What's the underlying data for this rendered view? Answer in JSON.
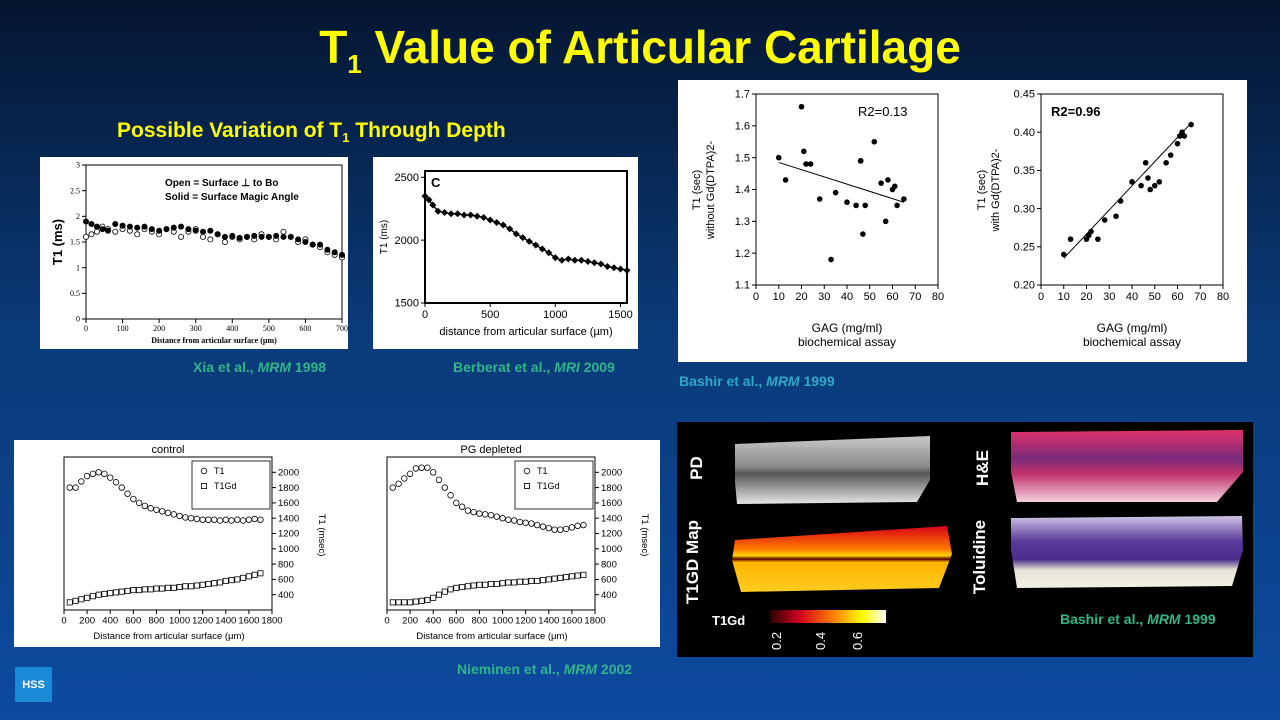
{
  "title": {
    "main_pre": "T",
    "main_sub": "1",
    "main_post": " Value of Articular Cartilage"
  },
  "subtitle": {
    "pre": "Possible Variation of T",
    "sub": "1",
    "post": " Through Depth"
  },
  "citations": {
    "xia": {
      "authors": "Xia et al., ",
      "journal": "MRM",
      "year": " 1998"
    },
    "berberat": {
      "authors": "Berberat et al., ",
      "journal": "MRI",
      "year": " 2009"
    },
    "bashir1": {
      "authors": "Bashir et al., ",
      "journal": "MRM",
      "year": " 1999"
    },
    "nieminen": {
      "authors": "Nieminen et al., ",
      "journal": "MRM",
      "year": " 2002"
    },
    "bashir2": {
      "authors": "Bashir et al., ",
      "journal": "MRM",
      "year": " 1999"
    }
  },
  "logo": "HSS",
  "histology": {
    "pd": "PD",
    "t1gd_map": "T1GD Map",
    "he": "H&E",
    "toluidine": "Toluidine",
    "colorbar_label": "T1Gd",
    "colorbar_ticks": [
      "0.2",
      "0.4",
      "0.6"
    ]
  },
  "chart_data": [
    {
      "id": "xia",
      "type": "scatter",
      "xlabel": "Distance from articular surface (µm)",
      "ylabel": "T1 (ms)",
      "xlim": [
        0,
        700
      ],
      "ylim": [
        0,
        3
      ],
      "xticks": [
        "0",
        "100",
        "200",
        "300",
        "400",
        "500",
        "600",
        "700"
      ],
      "yticks": [
        "0",
        "0.5",
        "1",
        "1.5",
        "2",
        "2.5",
        "3"
      ],
      "legend": [
        "Open = Surface ⊥ to Bo",
        "Solid = Surface Magic Angle"
      ],
      "series": [
        {
          "name": "Open",
          "style": "open",
          "x": [
            0,
            15,
            30,
            45,
            60,
            80,
            100,
            120,
            140,
            160,
            180,
            200,
            220,
            240,
            260,
            280,
            300,
            320,
            340,
            360,
            380,
            400,
            420,
            440,
            460,
            480,
            500,
            520,
            540,
            560,
            580,
            600,
            620,
            640,
            660,
            680,
            700
          ],
          "y": [
            1.6,
            1.65,
            1.7,
            1.8,
            1.75,
            1.7,
            1.75,
            1.72,
            1.65,
            1.75,
            1.7,
            1.65,
            1.75,
            1.7,
            1.6,
            1.7,
            1.75,
            1.6,
            1.55,
            1.65,
            1.5,
            1.6,
            1.55,
            1.6,
            1.55,
            1.65,
            1.6,
            1.55,
            1.7,
            1.6,
            1.5,
            1.55,
            1.45,
            1.4,
            1.3,
            1.25,
            1.2
          ]
        },
        {
          "name": "Solid",
          "style": "filled",
          "x": [
            0,
            15,
            30,
            45,
            60,
            80,
            100,
            120,
            140,
            160,
            180,
            200,
            220,
            240,
            260,
            280,
            300,
            320,
            340,
            360,
            380,
            400,
            420,
            440,
            460,
            480,
            500,
            520,
            540,
            560,
            580,
            600,
            620,
            640,
            660,
            680,
            700
          ],
          "y": [
            1.9,
            1.85,
            1.8,
            1.75,
            1.72,
            1.85,
            1.82,
            1.8,
            1.78,
            1.8,
            1.75,
            1.72,
            1.75,
            1.78,
            1.8,
            1.75,
            1.72,
            1.7,
            1.72,
            1.65,
            1.6,
            1.62,
            1.58,
            1.6,
            1.62,
            1.6,
            1.6,
            1.62,
            1.6,
            1.6,
            1.55,
            1.5,
            1.45,
            1.45,
            1.35,
            1.3,
            1.25
          ]
        }
      ]
    },
    {
      "id": "berberat",
      "type": "line",
      "panel_label": "C",
      "xlabel": "distance from articular surface (µm)",
      "ylabel": "T1 (ms)",
      "xlim": [
        0,
        1550
      ],
      "ylim": [
        1500,
        2550
      ],
      "xticks": [
        "0",
        "500",
        "1000",
        "1500"
      ],
      "yticks": [
        "1500",
        "2000",
        "2500"
      ],
      "series": [
        {
          "x": [
            0,
            30,
            60,
            100,
            150,
            200,
            250,
            300,
            350,
            400,
            450,
            500,
            550,
            600,
            650,
            700,
            750,
            800,
            850,
            900,
            950,
            1000,
            1050,
            1100,
            1150,
            1200,
            1250,
            1300,
            1350,
            1400,
            1450,
            1500,
            1550
          ],
          "y": [
            2350,
            2320,
            2280,
            2230,
            2220,
            2210,
            2210,
            2200,
            2200,
            2190,
            2180,
            2160,
            2140,
            2120,
            2090,
            2050,
            2020,
            1990,
            1960,
            1930,
            1900,
            1860,
            1840,
            1850,
            1840,
            1840,
            1830,
            1820,
            1810,
            1790,
            1780,
            1770,
            1760
          ]
        }
      ]
    },
    {
      "id": "bashir_without",
      "type": "scatter",
      "annotation": "R2=0.13",
      "xlabel": "GAG  (mg/ml)",
      "xlabel2": "biochemical assay",
      "ylabel": "T1 (sec)",
      "ylabel2": "without Gd(DTPA)2-",
      "xlim": [
        0,
        80
      ],
      "ylim": [
        1.1,
        1.7
      ],
      "xticks": [
        "0",
        "10",
        "20",
        "30",
        "40",
        "50",
        "60",
        "70",
        "80"
      ],
      "yticks": [
        "1.1",
        "1.2",
        "1.3",
        "1.4",
        "1.5",
        "1.6",
        "1.7"
      ],
      "series": [
        {
          "x": [
            10,
            13,
            20,
            21,
            22,
            24,
            28,
            33,
            35,
            40,
            44,
            46,
            46,
            47,
            48,
            52,
            55,
            57,
            58,
            60,
            61,
            62,
            65
          ],
          "y": [
            1.5,
            1.43,
            1.66,
            1.52,
            1.48,
            1.48,
            1.37,
            1.18,
            1.39,
            1.36,
            1.35,
            1.49,
            1.49,
            1.26,
            1.35,
            1.55,
            1.42,
            1.3,
            1.43,
            1.4,
            1.41,
            1.35,
            1.37
          ]
        }
      ],
      "trendline": {
        "x": [
          10,
          65
        ],
        "y": [
          1.485,
          1.36
        ]
      }
    },
    {
      "id": "bashir_with",
      "type": "scatter",
      "annotation": "R2=0.96",
      "xlabel": "GAG  (mg/ml)",
      "xlabel2": "biochemical assay",
      "ylabel": "T1 (sec)",
      "ylabel2": "with Gd(DTPA)2-",
      "xlim": [
        0,
        80
      ],
      "ylim": [
        0.2,
        0.45
      ],
      "xticks": [
        "0",
        "10",
        "20",
        "30",
        "40",
        "50",
        "60",
        "70",
        "80"
      ],
      "yticks": [
        "0.20",
        "0.25",
        "0.30",
        "0.35",
        "0.40",
        "0.45"
      ],
      "series": [
        {
          "x": [
            10,
            13,
            20,
            21,
            22,
            25,
            28,
            33,
            35,
            40,
            44,
            46,
            47,
            48,
            50,
            52,
            55,
            57,
            60,
            61,
            62,
            63,
            66
          ],
          "y": [
            0.24,
            0.26,
            0.26,
            0.265,
            0.27,
            0.26,
            0.285,
            0.29,
            0.31,
            0.335,
            0.33,
            0.36,
            0.34,
            0.325,
            0.33,
            0.335,
            0.36,
            0.37,
            0.385,
            0.395,
            0.4,
            0.395,
            0.41
          ]
        }
      ],
      "trendline": {
        "x": [
          10,
          66
        ],
        "y": [
          0.235,
          0.412
        ]
      }
    },
    {
      "id": "nieminen_control",
      "type": "scatter",
      "title": "control",
      "xlabel": "Distance from articular surface (μm)",
      "ylabel": "T1 (msec)",
      "legend": [
        "T1",
        "T1Gd"
      ],
      "xlim": [
        0,
        1800
      ],
      "ylim": [
        200,
        2200
      ],
      "xticks": [
        "0",
        "200",
        "400",
        "600",
        "800",
        "1000",
        "1200",
        "1400",
        "1600",
        "1800"
      ],
      "yticks": [
        "400",
        "600",
        "800",
        "1000",
        "1200",
        "1400",
        "1600",
        "1800",
        "2000"
      ],
      "series": [
        {
          "name": "T1",
          "style": "circle",
          "x": [
            50,
            100,
            150,
            200,
            250,
            300,
            350,
            400,
            450,
            500,
            550,
            600,
            650,
            700,
            750,
            800,
            850,
            900,
            950,
            1000,
            1050,
            1100,
            1150,
            1200,
            1250,
            1300,
            1350,
            1400,
            1450,
            1500,
            1550,
            1600,
            1650,
            1700
          ],
          "y": [
            1800,
            1800,
            1880,
            1950,
            1980,
            2000,
            1980,
            1930,
            1870,
            1800,
            1720,
            1650,
            1600,
            1560,
            1530,
            1510,
            1490,
            1470,
            1450,
            1430,
            1410,
            1400,
            1390,
            1380,
            1380,
            1380,
            1370,
            1380,
            1370,
            1380,
            1370,
            1380,
            1390,
            1380
          ]
        },
        {
          "name": "T1Gd",
          "style": "square",
          "x": [
            50,
            100,
            150,
            200,
            250,
            300,
            350,
            400,
            450,
            500,
            550,
            600,
            650,
            700,
            750,
            800,
            850,
            900,
            950,
            1000,
            1050,
            1100,
            1150,
            1200,
            1250,
            1300,
            1350,
            1400,
            1450,
            1500,
            1550,
            1600,
            1650,
            1700
          ],
          "y": [
            300,
            320,
            340,
            360,
            380,
            400,
            410,
            420,
            430,
            440,
            450,
            460,
            460,
            470,
            470,
            480,
            480,
            490,
            490,
            500,
            510,
            510,
            520,
            530,
            540,
            550,
            560,
            580,
            590,
            600,
            620,
            640,
            660,
            680
          ]
        }
      ]
    },
    {
      "id": "nieminen_pg_depleted",
      "type": "scatter",
      "title": "PG depleted",
      "xlabel": "Distance from articular surface (μm)",
      "ylabel": "T1 (msec)",
      "legend": [
        "T1",
        "T1Gd"
      ],
      "xlim": [
        0,
        1800
      ],
      "ylim": [
        200,
        2200
      ],
      "xticks": [
        "0",
        "200",
        "400",
        "600",
        "800",
        "1000",
        "1200",
        "1400",
        "1600",
        "1800"
      ],
      "yticks": [
        "400",
        "600",
        "800",
        "1000",
        "1200",
        "1400",
        "1600",
        "1800",
        "2000"
      ],
      "series": [
        {
          "name": "T1",
          "style": "circle",
          "x": [
            50,
            100,
            150,
            200,
            250,
            300,
            350,
            400,
            450,
            500,
            550,
            600,
            650,
            700,
            750,
            800,
            850,
            900,
            950,
            1000,
            1050,
            1100,
            1150,
            1200,
            1250,
            1300,
            1350,
            1400,
            1450,
            1500,
            1550,
            1600,
            1650,
            1700
          ],
          "y": [
            1800,
            1850,
            1920,
            1980,
            2050,
            2060,
            2060,
            2000,
            1900,
            1800,
            1700,
            1600,
            1550,
            1500,
            1480,
            1460,
            1450,
            1440,
            1420,
            1400,
            1380,
            1370,
            1350,
            1340,
            1330,
            1310,
            1290,
            1270,
            1250,
            1250,
            1260,
            1280,
            1300,
            1310
          ]
        },
        {
          "name": "T1Gd",
          "style": "square",
          "x": [
            50,
            100,
            150,
            200,
            250,
            300,
            350,
            400,
            450,
            500,
            550,
            600,
            650,
            700,
            750,
            800,
            850,
            900,
            950,
            1000,
            1050,
            1100,
            1150,
            1200,
            1250,
            1300,
            1350,
            1400,
            1450,
            1500,
            1550,
            1600,
            1650,
            1700
          ],
          "y": [
            300,
            300,
            300,
            300,
            310,
            320,
            330,
            360,
            400,
            440,
            470,
            490,
            500,
            510,
            520,
            530,
            530,
            540,
            540,
            550,
            560,
            560,
            570,
            570,
            580,
            580,
            590,
            600,
            610,
            620,
            630,
            640,
            650,
            660
          ]
        }
      ]
    }
  ]
}
